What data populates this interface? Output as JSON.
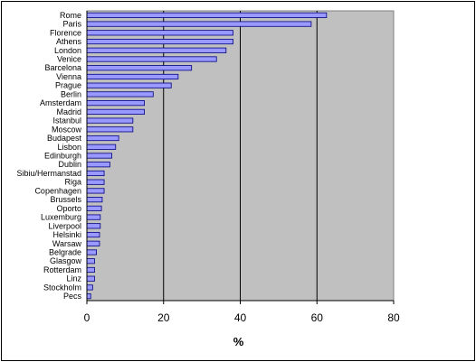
{
  "chart_data": {
    "type": "bar",
    "orientation": "horizontal",
    "title": "",
    "xlabel": "%",
    "ylabel": "",
    "xlim": [
      0,
      80
    ],
    "x_ticks": [
      0,
      20,
      40,
      60,
      80
    ],
    "grid": "vertical major gridlines",
    "legend": "none",
    "colors": {
      "bar_fill": "#9999ff",
      "bar_stroke": "#000080",
      "plot_background": "#c0c0c0",
      "gridline": "#000000"
    },
    "categories": [
      "Rome",
      "Paris",
      "Florence",
      "Athens",
      "London",
      "Venice",
      "Barcelona",
      "Vienna",
      "Prague",
      "Berlin",
      "Amsterdam",
      "Madrid",
      "Istanbul",
      "Moscow",
      "Budapest",
      "Lisbon",
      "Edinburgh",
      "Dublin",
      "Sibiu/Hermanstad",
      "Riga",
      "Copenhagen",
      "Brussels",
      "Oporto",
      "Luxemburg",
      "Liverpool",
      "Helsinki",
      "Warsaw",
      "Belgrade",
      "Glasgow",
      "Rotterdam",
      "Linz",
      "Stockholm",
      "Pecs"
    ],
    "values": [
      62.5,
      58.5,
      38.1,
      38.1,
      36.3,
      33.8,
      27.3,
      23.8,
      22.0,
      17.3,
      15.0,
      15.0,
      12.0,
      12.0,
      8.3,
      7.5,
      6.5,
      6.0,
      4.5,
      4.5,
      4.5,
      4.0,
      3.8,
      3.5,
      3.5,
      3.3,
      3.3,
      2.5,
      2.0,
      2.0,
      2.0,
      1.5,
      1.0
    ]
  }
}
